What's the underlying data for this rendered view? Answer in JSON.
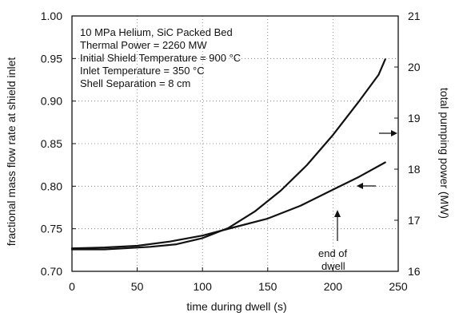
{
  "chart_data": {
    "type": "line",
    "xlabel": "time during dwell (s)",
    "ylabel_left": "fractional mass flow rate at shield inlet",
    "ylabel_right": "total pumping power (MW)",
    "xlim": [
      0,
      250
    ],
    "ylim_left": [
      0.7,
      1.0
    ],
    "ylim_right": [
      16,
      21
    ],
    "x_ticks": [
      "0",
      "50",
      "100",
      "150",
      "200",
      "250"
    ],
    "y_left_ticks": [
      "0.70",
      "0.75",
      "0.80",
      "0.85",
      "0.90",
      "0.95",
      "1.00"
    ],
    "y_right_ticks": [
      "16",
      "17",
      "18",
      "19",
      "20",
      "21"
    ],
    "grid": "dotted",
    "annotations": {
      "conditions": [
        "10 MPa Helium, SiC Packed Bed",
        "Thermal Power = 2260 MW",
        "Initial Shield Temperature = 900 °C",
        "Inlet Temperature = 350 °C",
        "Shell Separation = 8 cm"
      ],
      "end_of_dwell": [
        "end of",
        "dwell"
      ]
    },
    "series": [
      {
        "axis": "left",
        "x": [
          0,
          25,
          50,
          75,
          100,
          125,
          150,
          175,
          200,
          220,
          240
        ],
        "y": [
          0.727,
          0.728,
          0.73,
          0.735,
          0.742,
          0.752,
          0.762,
          0.777,
          0.796,
          0.811,
          0.828
        ]
      },
      {
        "axis": "right",
        "x": [
          0,
          25,
          40,
          60,
          80,
          100,
          120,
          140,
          160,
          180,
          200,
          220,
          235,
          240
        ],
        "y": [
          16.43,
          16.43,
          16.45,
          16.48,
          16.53,
          16.65,
          16.85,
          17.17,
          17.58,
          18.08,
          18.67,
          19.33,
          19.85,
          20.15
        ]
      }
    ]
  }
}
